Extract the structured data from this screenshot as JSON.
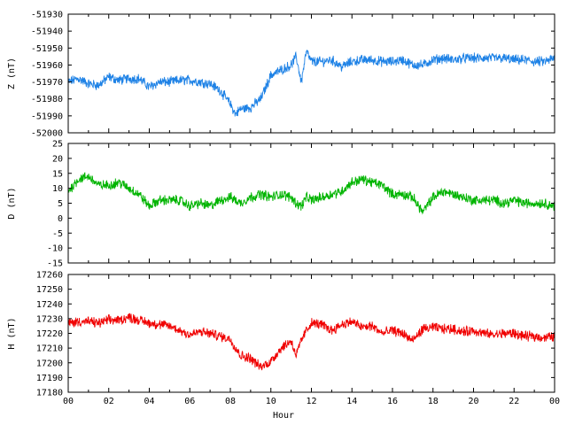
{
  "chart_data": [
    {
      "type": "line",
      "ylabel": "Z (nT)",
      "ylim": [
        -52000,
        -51930
      ],
      "yticks": [
        -51930,
        -51940,
        -51950,
        -51960,
        -51970,
        -51980,
        -51990,
        -52000
      ],
      "color": "#1e82e6",
      "series": [
        {
          "x": [
            0,
            0.5,
            1,
            1.5,
            2,
            2.5,
            3,
            3.5,
            4,
            4.5,
            5,
            5.5,
            6,
            6.5,
            7,
            7.5,
            8,
            8.25,
            8.5,
            9,
            9.5,
            10,
            10.5,
            11,
            11.25,
            11.5,
            11.75,
            12,
            12.5,
            13,
            13.5,
            14,
            14.5,
            15,
            15.5,
            16,
            16.5,
            17,
            17.5,
            18,
            18.5,
            19,
            19.5,
            20,
            20.5,
            21,
            21.5,
            22,
            22.5,
            23,
            23.5,
            24
          ],
          "y": [
            -51970,
            -51968,
            -51971,
            -51972,
            -51967,
            -51969,
            -51968,
            -51968,
            -51973,
            -51970,
            -51970,
            -51969,
            -51969,
            -51970,
            -51971,
            -51975,
            -51983,
            -51989,
            -51986,
            -51985,
            -51980,
            -51966,
            -51963,
            -51960,
            -51955,
            -51970,
            -51952,
            -51958,
            -51958,
            -51957,
            -51961,
            -51958,
            -51957,
            -51957,
            -51958,
            -51958,
            -51957,
            -51960,
            -51960,
            -51957,
            -51956,
            -51957,
            -51956,
            -51956,
            -51956,
            -51956,
            -51956,
            -51957,
            -51957,
            -51958,
            -51958,
            -51956
          ]
        }
      ]
    },
    {
      "type": "line",
      "ylabel": "D (nT)",
      "ylim": [
        -15,
        25
      ],
      "yticks": [
        25,
        20,
        15,
        10,
        5,
        0,
        -5,
        -10,
        -15
      ],
      "color": "#00b400",
      "series": [
        {
          "x": [
            0,
            0.5,
            1,
            1.5,
            2,
            2.5,
            3,
            3.5,
            4,
            4.5,
            5,
            5.5,
            6,
            6.5,
            7,
            7.5,
            8,
            8.5,
            9,
            9.5,
            10,
            10.5,
            11,
            11.25,
            11.5,
            11.75,
            12,
            12.5,
            13,
            13.5,
            14,
            14.5,
            15,
            15.5,
            16,
            16.5,
            17,
            17.5,
            18,
            18.5,
            19,
            19.5,
            20,
            20.5,
            21,
            21.5,
            22,
            22.5,
            23,
            23.5,
            24
          ],
          "y": [
            9,
            13,
            14,
            11,
            11,
            12,
            10,
            8,
            4,
            6,
            6,
            6,
            4,
            5,
            4,
            6,
            7,
            5,
            7,
            8,
            7,
            8,
            7,
            5,
            4,
            7,
            6,
            7,
            8,
            9,
            12,
            13,
            12,
            11,
            8,
            8,
            7,
            2,
            7,
            9,
            8,
            7,
            6,
            6,
            6,
            5,
            6,
            5,
            5,
            5,
            4
          ]
        }
      ]
    },
    {
      "type": "line",
      "ylabel": "H (nT)",
      "xlabel": "Hour",
      "ylim": [
        17180,
        17260
      ],
      "yticks": [
        17260,
        17250,
        17240,
        17230,
        17220,
        17210,
        17200,
        17190,
        17180
      ],
      "xlim": [
        0,
        24
      ],
      "xtick_labels": [
        "00",
        "02",
        "04",
        "06",
        "08",
        "10",
        "12",
        "14",
        "16",
        "18",
        "20",
        "22",
        "00"
      ],
      "color": "#f00000",
      "series": [
        {
          "x": [
            0,
            0.5,
            1,
            1.5,
            2,
            2.5,
            3,
            3.5,
            4,
            4.5,
            5,
            5.5,
            6,
            6.5,
            7,
            7.5,
            8,
            8.5,
            9,
            9.5,
            10,
            10.5,
            11,
            11.25,
            11.5,
            11.75,
            12,
            12.5,
            13,
            13.5,
            14,
            14.5,
            15,
            15.5,
            16,
            16.5,
            17,
            17.5,
            18,
            18.5,
            19,
            19.5,
            20,
            20.5,
            21,
            21.5,
            22,
            22.5,
            23,
            23.5,
            24
          ],
          "y": [
            17227,
            17228,
            17228,
            17227,
            17229,
            17229,
            17231,
            17229,
            17227,
            17226,
            17225,
            17222,
            17219,
            17221,
            17220,
            17218,
            17216,
            17205,
            17203,
            17197,
            17201,
            17210,
            17215,
            17205,
            17215,
            17222,
            17227,
            17226,
            17222,
            17226,
            17228,
            17224,
            17225,
            17220,
            17222,
            17220,
            17215,
            17223,
            17224,
            17223,
            17223,
            17221,
            17222,
            17220,
            17219,
            17220,
            17220,
            17218,
            17218,
            17217,
            17218
          ]
        }
      ]
    }
  ]
}
